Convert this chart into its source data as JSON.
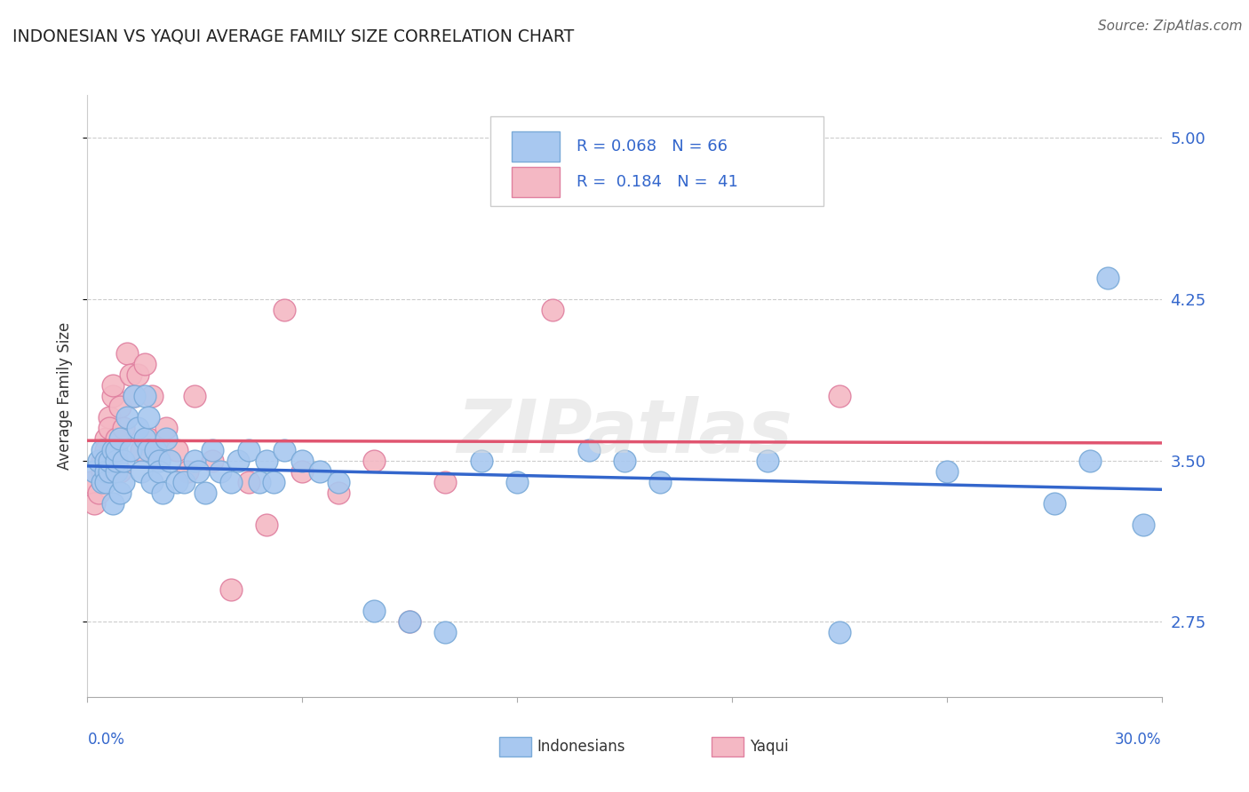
{
  "title": "INDONESIAN VS YAQUI AVERAGE FAMILY SIZE CORRELATION CHART",
  "source": "Source: ZipAtlas.com",
  "ylabel": "Average Family Size",
  "yticks": [
    2.75,
    3.5,
    4.25,
    5.0
  ],
  "xlim": [
    0.0,
    0.3
  ],
  "ylim": [
    2.4,
    5.2
  ],
  "legend_blue_r": "R = 0.068",
  "legend_blue_n": "N = 66",
  "legend_pink_r": "R =  0.184",
  "legend_pink_n": "N =  41",
  "legend_label_blue": "Indonesians",
  "legend_label_pink": "Yaqui",
  "blue_color": "#A8C8F0",
  "pink_color": "#F4B8C4",
  "blue_edge_color": "#7AAAD8",
  "pink_edge_color": "#E080A0",
  "blue_line_color": "#3366CC",
  "pink_line_color": "#E05570",
  "blue_x": [
    0.002,
    0.003,
    0.004,
    0.004,
    0.005,
    0.005,
    0.005,
    0.006,
    0.006,
    0.007,
    0.007,
    0.008,
    0.008,
    0.008,
    0.009,
    0.009,
    0.01,
    0.01,
    0.011,
    0.012,
    0.013,
    0.014,
    0.015,
    0.016,
    0.016,
    0.017,
    0.017,
    0.018,
    0.019,
    0.02,
    0.02,
    0.021,
    0.022,
    0.023,
    0.025,
    0.027,
    0.03,
    0.031,
    0.033,
    0.035,
    0.037,
    0.04,
    0.042,
    0.045,
    0.048,
    0.05,
    0.052,
    0.055,
    0.06,
    0.065,
    0.07,
    0.08,
    0.09,
    0.1,
    0.11,
    0.12,
    0.14,
    0.15,
    0.16,
    0.19,
    0.21,
    0.24,
    0.27,
    0.28,
    0.285,
    0.295
  ],
  "blue_y": [
    3.45,
    3.5,
    3.4,
    3.55,
    3.5,
    3.45,
    3.4,
    3.45,
    3.5,
    3.55,
    3.3,
    3.45,
    3.5,
    3.55,
    3.6,
    3.35,
    3.4,
    3.5,
    3.7,
    3.55,
    3.8,
    3.65,
    3.45,
    3.8,
    3.6,
    3.55,
    3.7,
    3.4,
    3.55,
    3.5,
    3.45,
    3.35,
    3.6,
    3.5,
    3.4,
    3.4,
    3.5,
    3.45,
    3.35,
    3.55,
    3.45,
    3.4,
    3.5,
    3.55,
    3.4,
    3.5,
    3.4,
    3.55,
    3.5,
    3.45,
    3.4,
    2.8,
    2.75,
    2.7,
    3.5,
    3.4,
    3.55,
    3.5,
    3.4,
    3.5,
    2.7,
    3.45,
    3.3,
    3.5,
    4.35,
    3.2
  ],
  "pink_x": [
    0.001,
    0.002,
    0.003,
    0.004,
    0.004,
    0.005,
    0.005,
    0.006,
    0.006,
    0.007,
    0.007,
    0.008,
    0.008,
    0.009,
    0.009,
    0.01,
    0.011,
    0.012,
    0.013,
    0.014,
    0.015,
    0.016,
    0.017,
    0.018,
    0.02,
    0.022,
    0.025,
    0.028,
    0.03,
    0.035,
    0.04,
    0.045,
    0.05,
    0.055,
    0.06,
    0.07,
    0.08,
    0.09,
    0.1,
    0.13,
    0.21
  ],
  "pink_y": [
    3.4,
    3.3,
    3.35,
    3.5,
    3.45,
    3.6,
    3.55,
    3.7,
    3.65,
    3.8,
    3.85,
    3.6,
    3.5,
    3.45,
    3.75,
    3.65,
    4.0,
    3.9,
    3.8,
    3.9,
    3.55,
    3.95,
    3.6,
    3.8,
    3.55,
    3.65,
    3.55,
    3.45,
    3.8,
    3.5,
    2.9,
    3.4,
    3.2,
    4.2,
    3.45,
    3.35,
    3.5,
    2.75,
    3.4,
    4.2,
    3.8
  ]
}
